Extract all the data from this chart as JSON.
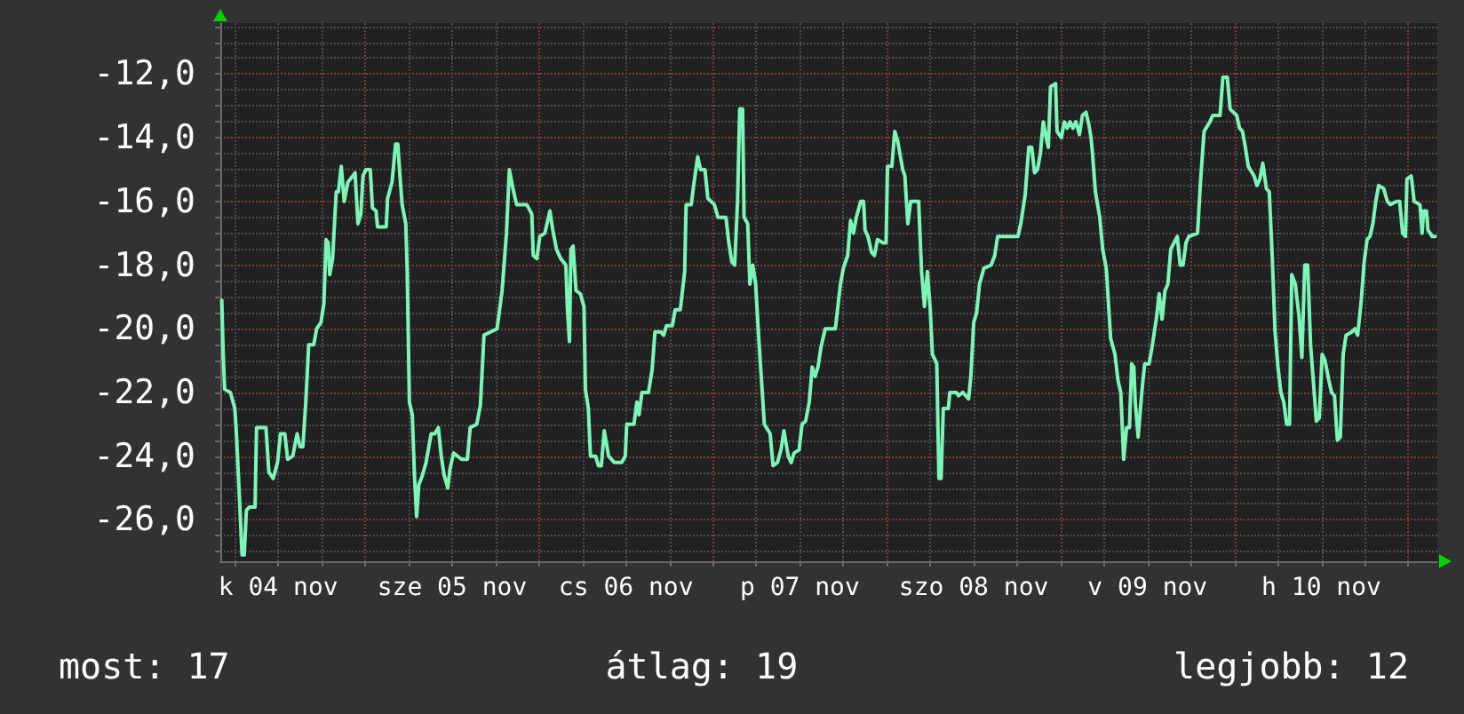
{
  "chart_data": {
    "type": "line",
    "x": [
      "--11-04T04:12",
      "--11-04T04:24",
      "--11-04T04:36",
      "--11-04T05:24",
      "--11-04T06:00",
      "--11-04T06:12",
      "--11-04T06:36",
      "--11-04T07:00",
      "--11-04T07:18",
      "--11-04T07:36",
      "--11-04T08:00",
      "--11-04T08:48",
      "--11-04T09:00",
      "--11-04T10:18",
      "--11-04T10:42",
      "--11-04T11:18",
      "--11-04T11:54",
      "--11-04T12:18",
      "--11-04T12:54",
      "--11-04T13:18",
      "--11-04T14:00",
      "--11-04T14:36",
      "--11-04T15:00",
      "--11-04T15:24",
      "--11-04T15:48",
      "--11-04T16:12",
      "--11-04T16:54",
      "--11-04T17:18",
      "--11-04T17:54",
      "--11-04T18:18",
      "--11-04T18:36",
      "--11-04T18:54",
      "--11-04T19:06",
      "--11-04T19:30",
      "--11-04T20:00",
      "--11-04T20:18",
      "--11-04T20:42",
      "--11-04T21:06",
      "--11-04T21:36",
      "--11-04T22:18",
      "--11-04T22:36",
      "--11-04T23:00",
      "--11-04T23:24",
      "--11-04T23:42",
      "--11-05T00:06",
      "--11-05T00:42",
      "--11-05T01:00",
      "--11-05T01:30",
      "--11-05T01:42",
      "--11-05T02:54",
      "--11-05T03:06",
      "--11-05T03:42",
      "--11-05T04:12",
      "--11-05T04:30",
      "--11-05T04:48",
      "--11-05T05:06",
      "--11-05T05:36",
      "--11-05T05:48",
      "--11-05T06:06",
      "--11-05T06:30",
      "--11-05T06:48",
      "--11-05T07:06",
      "--11-05T07:24",
      "--11-05T07:54",
      "--11-05T08:24",
      "--11-05T09:06",
      "--11-05T09:36",
      "--11-05T10:06",
      "--11-05T10:30",
      "--11-05T10:54",
      "--11-05T11:24",
      "--11-05T11:42",
      "--11-05T12:12",
      "--11-05T13:18",
      "--11-05T14:06",
      "--11-05T14:30",
      "--11-05T15:24",
      "--11-05T15:54",
      "--11-05T16:24",
      "--11-05T18:12",
      "--11-05T18:54",
      "--11-05T19:30",
      "--11-05T19:54",
      "--11-05T20:24",
      "--11-05T20:54",
      "--11-05T22:18",
      "--11-05T23:00",
      "--11-05T23:12",
      "--11-05T23:42",
      "--11-06T00:06",
      "--11-06T00:48",
      "--11-06T01:30",
      "--11-06T01:54",
      "--11-06T02:24",
      "--11-06T03:00",
      "--11-06T03:42",
      "--11-06T03:54",
      "--11-06T04:12",
      "--11-06T04:24",
      "--11-06T04:42",
      "--11-06T05:06",
      "--11-06T05:42",
      "--11-06T06:12",
      "--11-06T06:24",
      "--11-06T06:48",
      "--11-06T07:06",
      "--11-06T07:48",
      "--11-06T08:12",
      "--11-06T08:36",
      "--11-06T09:00",
      "--11-06T09:36",
      "--11-06T10:24",
      "--11-06T11:24",
      "--11-06T11:54",
      "--11-06T12:06",
      "--11-06T13:06",
      "--11-06T13:30",
      "--11-06T13:48",
      "--11-06T14:12",
      "--11-06T15:06",
      "--11-06T15:36",
      "--11-06T16:00",
      "--11-06T16:48",
      "--11-06T17:12",
      "--11-06T17:36",
      "--11-06T18:24",
      "--11-06T18:48",
      "--11-06T19:30",
      "--11-06T20:06",
      "--11-06T20:18",
      "--11-06T21:00",
      "--11-06T21:24",
      "--11-06T21:54",
      "--11-06T22:18",
      "--11-06T22:54",
      "--11-06T23:18",
      "--11-07T00:12",
      "--11-07T00:42",
      "--11-07T01:48",
      "--11-07T02:12",
      "--11-07T02:36",
      "--11-07T03:00",
      "--11-07T03:24",
      "--11-07T03:42",
      "--11-07T04:06",
      "--11-07T04:18",
      "--11-07T04:48",
      "--11-07T05:06",
      "--11-07T05:30",
      "--11-07T05:54",
      "--11-07T06:18",
      "--11-07T06:42",
      "--11-07T07:06",
      "--11-07T07:54",
      "--11-07T08:18",
      "--11-07T08:54",
      "--11-07T09:24",
      "--11-07T09:48",
      "--11-07T10:24",
      "--11-07T10:48",
      "--11-07T11:12",
      "--11-07T11:54",
      "--11-07T12:18",
      "--11-07T12:48",
      "--11-07T13:18",
      "--11-07T13:42",
      "--11-07T14:06",
      "--11-07T14:30",
      "--11-07T14:54",
      "--11-07T15:30",
      "--11-07T16:54",
      "--11-07T17:36",
      "--11-07T18:00",
      "--11-07T18:36",
      "--11-07T19:00",
      "--11-07T19:24",
      "--11-07T19:48",
      "--11-07T20:24",
      "--11-07T20:48",
      "--11-07T21:00",
      "--11-07T21:24",
      "--11-07T21:54",
      "--11-07T22:18",
      "--11-07T22:42",
      "--11-07T23:30",
      "--11-07T23:54",
      "--11-08T00:06",
      "--11-08T00:42",
      "--11-08T01:06",
      "--11-08T01:30",
      "--11-08T02:12",
      "--11-08T02:30",
      "--11-08T02:54",
      "--11-08T03:18",
      "--11-08T04:24",
      "--11-08T04:48",
      "--11-08T05:12",
      "--11-08T05:36",
      "--11-08T06:00",
      "--11-08T06:18",
      "--11-08T06:54",
      "--11-08T07:12",
      "--11-08T07:30",
      "--11-08T07:48",
      "--11-08T08:30",
      "--11-08T08:42",
      "--11-08T09:36",
      "--11-08T09:54",
      "--11-08T10:30",
      "--11-08T11:18",
      "--11-08T11:36",
      "--11-08T12:00",
      "--11-08T12:24",
      "--11-08T12:48",
      "--11-08T13:24",
      "--11-08T14:24",
      "--11-08T14:54",
      "--11-08T15:18",
      "--11-08T18:06",
      "--11-08T18:30",
      "--11-08T19:06",
      "--11-08T19:36",
      "--11-08T20:00",
      "--11-08T20:24",
      "--11-08T20:48",
      "--11-08T21:12",
      "--11-08T21:36",
      "--11-08T22:00",
      "--11-08T22:18",
      "--11-08T22:36",
      "--11-08T23:18",
      "--11-08T23:30",
      "--11-09T00:06",
      "--11-09T00:30",
      "--11-09T00:54",
      "--11-09T01:18",
      "--11-09T01:42",
      "--11-09T02:06",
      "--11-09T02:36",
      "--11-09T03:00",
      "--11-09T03:30",
      "--11-09T03:54",
      "--11-09T04:12",
      "--11-09T04:24",
      "--11-09T04:48",
      "--11-09T05:24",
      "--11-09T05:48",
      "--11-09T06:18",
      "--11-09T06:54",
      "--11-09T07:30",
      "--11-09T07:54",
      "--11-09T08:18",
      "--11-09T08:42",
      "--11-09T09:06",
      "--11-09T09:30",
      "--11-09T09:48",
      "--11-09T10:06",
      "--11-09T10:18",
      "--11-09T10:42",
      "--11-09T11:12",
      "--11-09T11:36",
      "--11-09T12:12",
      "--11-09T12:36",
      "--11-09T13:12",
      "--11-09T13:36",
      "--11-09T14:00",
      "--11-09T14:24",
      "--11-09T14:48",
      "--11-09T15:12",
      "--11-09T16:06",
      "--11-09T16:30",
      "--11-09T16:54",
      "--11-09T17:18",
      "--11-09T17:42",
      "--11-09T18:54",
      "--11-09T19:18",
      "--11-09T19:48",
      "--11-09T20:36",
      "--11-09T21:00",
      "--11-09T22:00",
      "--11-09T22:24",
      "--11-09T23:00",
      "--11-09T23:24",
      "--11-10T00:18",
      "--11-10T00:42",
      "--11-10T01:06",
      "--11-10T01:30",
      "--11-10T01:54",
      "--11-10T02:42",
      "--11-10T03:06",
      "--11-10T03:30",
      "--11-10T03:54",
      "--11-10T04:24",
      "--11-10T04:48",
      "--11-10T05:12",
      "--11-10T05:36",
      "--11-10T06:00",
      "--11-10T06:24",
      "--11-10T06:48",
      "--11-10T07:12",
      "--11-10T07:36",
      "--11-10T07:54",
      "--11-10T08:24",
      "--11-10T08:54",
      "--11-10T09:18",
      "--11-10T09:42",
      "--11-10T10:06",
      "--11-10T10:30",
      "--11-10T10:54",
      "--11-10T11:18",
      "--11-10T11:42",
      "--11-10T12:06",
      "--11-10T12:30",
      "--11-10T13:00",
      "--11-10T13:24",
      "--11-10T13:48",
      "--11-10T14:12",
      "--11-10T14:36",
      "--11-10T15:00",
      "--11-10T15:24",
      "--11-10T16:12",
      "--11-10T16:36",
      "--11-10T17:00",
      "--11-10T17:30",
      "--11-10T17:54",
      "--11-10T18:18",
      "--11-10T18:42",
      "--11-10T19:06",
      "--11-10T19:30",
      "--11-10T19:54",
      "--11-10T20:36",
      "--11-10T21:06",
      "--11-10T21:30",
      "--11-10T22:24",
      "--11-10T22:48",
      "--11-10T23:12",
      "--11-10T23:36",
      "--11-10T23:48",
      "--11-11T00:24",
      "--11-11T00:48",
      "--11-11T01:36",
      "--11-11T01:54",
      "--11-11T02:06",
      "--11-11T02:30",
      "--11-11T02:42",
      "--11-11T03:18",
      "--11-11T03:42"
    ],
    "series": [
      {
        "color": "#7ef5b8",
        "values": [
          -19.1,
          -20.8,
          -21.9,
          -22.0,
          -22.5,
          -23.2,
          -25.1,
          -27.1,
          -27.1,
          -25.7,
          -25.6,
          -25.6,
          -23.1,
          -23.1,
          -24.5,
          -24.7,
          -24.2,
          -23.3,
          -23.3,
          -24.1,
          -24.0,
          -23.3,
          -23.7,
          -23.7,
          -22.3,
          -20.5,
          -20.5,
          -20.0,
          -19.8,
          -19.2,
          -17.2,
          -17.3,
          -18.3,
          -17.8,
          -15.7,
          -15.7,
          -14.9,
          -16.0,
          -15.4,
          -15.2,
          -15.1,
          -16.7,
          -16.4,
          -15.2,
          -15.0,
          -15.0,
          -16.2,
          -16.3,
          -16.8,
          -16.8,
          -15.9,
          -15.4,
          -14.2,
          -14.2,
          -15.2,
          -16.1,
          -16.7,
          -18.2,
          -22.3,
          -22.7,
          -24.6,
          -25.9,
          -24.9,
          -24.6,
          -24.2,
          -23.3,
          -23.3,
          -23.1,
          -24.0,
          -24.6,
          -25.0,
          -24.4,
          -23.9,
          -24.1,
          -24.1,
          -23.1,
          -23.0,
          -22.4,
          -20.2,
          -20.0,
          -18.8,
          -17.0,
          -15.0,
          -15.6,
          -16.1,
          -16.1,
          -16.4,
          -17.7,
          -17.8,
          -17.1,
          -17.0,
          -16.3,
          -16.9,
          -17.5,
          -17.8,
          -18.0,
          -19.3,
          -20.4,
          -17.5,
          -17.4,
          -18.8,
          -18.9,
          -19.3,
          -21.9,
          -22.5,
          -24.0,
          -24.0,
          -24.3,
          -24.3,
          -23.2,
          -24.0,
          -24.2,
          -24.2,
          -24.0,
          -23.0,
          -23.0,
          -22.3,
          -22.7,
          -22.0,
          -22.0,
          -21.3,
          -20.1,
          -20.1,
          -20.2,
          -19.9,
          -19.9,
          -19.4,
          -19.4,
          -18.2,
          -16.1,
          -16.1,
          -15.4,
          -14.6,
          -15.0,
          -15.0,
          -15.9,
          -16.1,
          -16.5,
          -16.5,
          -17.3,
          -17.9,
          -18.0,
          -16.0,
          -13.1,
          -13.1,
          -16.5,
          -16.7,
          -18.6,
          -18.0,
          -18.6,
          -20.2,
          -21.6,
          -23.0,
          -23.3,
          -24.3,
          -24.2,
          -23.8,
          -23.2,
          -24.0,
          -24.2,
          -23.9,
          -23.8,
          -23.0,
          -22.9,
          -22.3,
          -21.2,
          -21.5,
          -21.2,
          -20.6,
          -20.0,
          -20.0,
          -18.6,
          -18.1,
          -17.7,
          -16.6,
          -17.0,
          -16.5,
          -16.0,
          -16.0,
          -16.9,
          -17.1,
          -17.6,
          -17.7,
          -17.2,
          -17.3,
          -17.3,
          -14.9,
          -14.9,
          -13.8,
          -14.1,
          -15.0,
          -15.2,
          -16.7,
          -16.0,
          -16.0,
          -18.2,
          -19.3,
          -18.2,
          -19.4,
          -20.8,
          -21.1,
          -24.7,
          -24.7,
          -22.5,
          -22.5,
          -22.0,
          -22.0,
          -22.1,
          -22.0,
          -22.2,
          -21.5,
          -19.8,
          -19.5,
          -18.6,
          -18.1,
          -18.0,
          -17.7,
          -17.1,
          -17.1,
          -16.7,
          -15.8,
          -14.3,
          -14.3,
          -15.1,
          -15.0,
          -14.5,
          -13.5,
          -14.0,
          -14.3,
          -12.4,
          -12.3,
          -13.8,
          -14.0,
          -13.5,
          -13.7,
          -13.5,
          -13.7,
          -13.5,
          -13.9,
          -13.3,
          -13.2,
          -13.6,
          -14.0,
          -14.5,
          -15.7,
          -16.5,
          -17.5,
          -18.1,
          -20.3,
          -20.8,
          -21.6,
          -22.0,
          -24.1,
          -23.1,
          -23.1,
          -21.1,
          -21.2,
          -22.3,
          -23.4,
          -22.0,
          -21.1,
          -21.1,
          -20.6,
          -19.7,
          -18.9,
          -19.7,
          -18.8,
          -18.6,
          -17.5,
          -17.1,
          -18.0,
          -18.0,
          -17.3,
          -17.1,
          -17.0,
          -15.4,
          -13.8,
          -13.5,
          -13.3,
          -13.3,
          -12.1,
          -12.1,
          -13.1,
          -13.3,
          -13.7,
          -13.8,
          -14.3,
          -14.9,
          -15.2,
          -15.5,
          -15.3,
          -14.8,
          -15.6,
          -15.7,
          -17.7,
          -20.1,
          -21.2,
          -22.0,
          -22.3,
          -23.0,
          -23.0,
          -18.3,
          -18.6,
          -19.6,
          -20.9,
          -18.0,
          -18.0,
          -20.5,
          -21.7,
          -22.9,
          -22.8,
          -20.8,
          -21.0,
          -21.6,
          -22.0,
          -22.1,
          -23.5,
          -23.4,
          -20.8,
          -20.2,
          -20.1,
          -20.0,
          -20.2,
          -19.1,
          -17.9,
          -17.2,
          -17.1,
          -16.7,
          -16.0,
          -15.5,
          -15.6,
          -16.0,
          -16.1,
          -16.0,
          -16.0,
          -17.0,
          -17.1,
          -15.3,
          -15.2,
          -16.0,
          -16.1,
          -17.0,
          -16.3,
          -16.3,
          -16.9,
          -17.1,
          -17.1
        ]
      }
    ],
    "xlim": [
      "--11-04T04:00",
      "--11-11T04:00"
    ],
    "xticks": [
      {
        "value": "--11-04T06:00",
        "label": null
      },
      {
        "value": "--11-04T12:00",
        "label": "k 04 nov"
      },
      {
        "value": "--11-04T18:00",
        "label": null
      },
      {
        "value": "--11-05T00:00",
        "label": null
      },
      {
        "value": "--11-05T06:00",
        "label": null
      },
      {
        "value": "--11-05T12:00",
        "label": "sze 05 nov"
      },
      {
        "value": "--11-05T18:00",
        "label": null
      },
      {
        "value": "--11-06T00:00",
        "label": null
      },
      {
        "value": "--11-06T06:00",
        "label": null
      },
      {
        "value": "--11-06T12:00",
        "label": "cs 06 nov"
      },
      {
        "value": "--11-06T18:00",
        "label": null
      },
      {
        "value": "--11-07T00:00",
        "label": null
      },
      {
        "value": "--11-07T06:00",
        "label": null
      },
      {
        "value": "--11-07T12:00",
        "label": "p 07 nov"
      },
      {
        "value": "--11-07T18:00",
        "label": null
      },
      {
        "value": "--11-08T00:00",
        "label": null
      },
      {
        "value": "--11-08T06:00",
        "label": null
      },
      {
        "value": "--11-08T12:00",
        "label": "szo 08 nov"
      },
      {
        "value": "--11-08T18:00",
        "label": null
      },
      {
        "value": "--11-09T00:00",
        "label": null
      },
      {
        "value": "--11-09T06:00",
        "label": null
      },
      {
        "value": "--11-09T12:00",
        "label": "v 09 nov"
      },
      {
        "value": "--11-09T18:00",
        "label": null
      },
      {
        "value": "--11-10T00:00",
        "label": null
      },
      {
        "value": "--11-10T06:00",
        "label": null
      },
      {
        "value": "--11-10T12:00",
        "label": "h 10 nov"
      },
      {
        "value": "--11-10T18:00",
        "label": null
      },
      {
        "value": "--11-11T00:00",
        "label": null
      }
    ],
    "ylim": [
      -27.3,
      -10.4
    ],
    "yticks": [
      {
        "value": -27,
        "label": null
      },
      {
        "value": -26.5,
        "label": null
      },
      {
        "value": -26,
        "label": "-26,0"
      },
      {
        "value": -25.5,
        "label": null
      },
      {
        "value": -25,
        "label": null
      },
      {
        "value": -24.5,
        "label": null
      },
      {
        "value": -24,
        "label": "-24,0"
      },
      {
        "value": -23.5,
        "label": null
      },
      {
        "value": -23,
        "label": null
      },
      {
        "value": -22.5,
        "label": null
      },
      {
        "value": -22,
        "label": "-22,0"
      },
      {
        "value": -21.5,
        "label": null
      },
      {
        "value": -21,
        "label": null
      },
      {
        "value": -20.5,
        "label": null
      },
      {
        "value": -20,
        "label": "-20,0"
      },
      {
        "value": -19.5,
        "label": null
      },
      {
        "value": -19,
        "label": null
      },
      {
        "value": -18.5,
        "label": null
      },
      {
        "value": -18,
        "label": "-18,0"
      },
      {
        "value": -17.5,
        "label": null
      },
      {
        "value": -17,
        "label": null
      },
      {
        "value": -16.5,
        "label": null
      },
      {
        "value": -16,
        "label": "-16,0"
      },
      {
        "value": -15.5,
        "label": null
      },
      {
        "value": -15,
        "label": null
      },
      {
        "value": -14.5,
        "label": null
      },
      {
        "value": -14,
        "label": "-14,0"
      },
      {
        "value": -13.5,
        "label": null
      },
      {
        "value": -13,
        "label": null
      },
      {
        "value": -12.5,
        "label": null
      },
      {
        "value": -12,
        "label": "-12,0"
      },
      {
        "value": -11.5,
        "label": null
      },
      {
        "value": -11,
        "label": null
      },
      {
        "value": -10.5,
        "label": null
      }
    ],
    "grid": true,
    "marker": "none",
    "annotations": [
      "most: 17",
      "átlag: 19",
      "legjobb: 12"
    ]
  }
}
